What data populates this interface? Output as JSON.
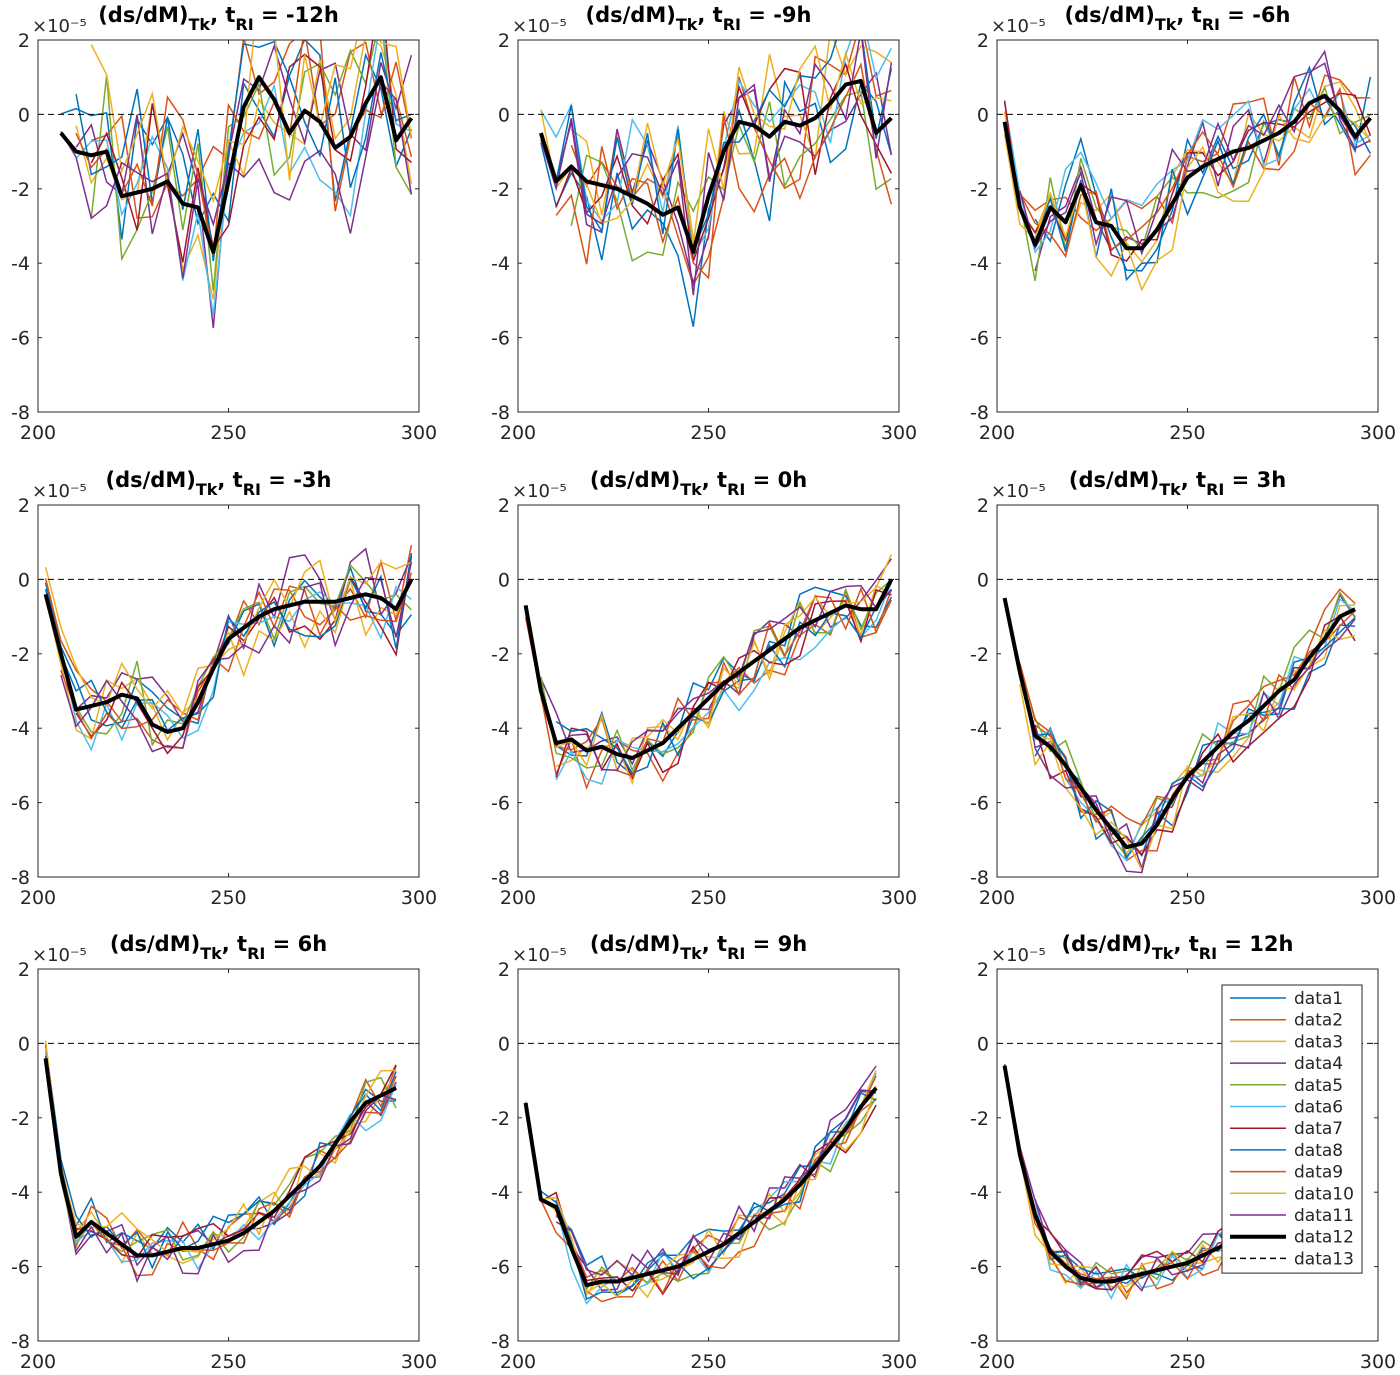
{
  "colors": {
    "series": [
      "#0072BD",
      "#D95319",
      "#EDB120",
      "#7E2F8E",
      "#77AC30",
      "#4DBEEE",
      "#A2142F",
      "#0072BD",
      "#D95319",
      "#EDB120",
      "#7E2F8E",
      "#000000",
      "#000000"
    ]
  },
  "chart_data": [
    {
      "type": "line",
      "title": "(ds/dM)Tk, tRI = -12h",
      "title_parts": {
        "main": "(ds/dM)",
        "sub1": "Tk",
        "mid": ", t",
        "sub2": "RI",
        "tail": " = -12h"
      },
      "exponent_label": "×10⁻⁵",
      "xlim": [
        200,
        300
      ],
      "ylim": [
        -8,
        2
      ],
      "xticks": [
        "200",
        "250",
        "300"
      ],
      "yticks": [
        "-8",
        "-6",
        "-4",
        "-2",
        "0",
        "2"
      ],
      "mean_series": {
        "name": "data12",
        "x": [
          206,
          210,
          214,
          218,
          222,
          226,
          230,
          234,
          238,
          242,
          246,
          250,
          254,
          258,
          262,
          266,
          270,
          274,
          278,
          282,
          286,
          290,
          294,
          298
        ],
        "y": [
          -0.5,
          -1.0,
          -1.1,
          -1.0,
          -2.2,
          -2.1,
          -2.0,
          -1.8,
          -2.4,
          -2.5,
          -3.7,
          -1.8,
          0.2,
          1.0,
          0.4,
          -0.5,
          0.1,
          -0.2,
          -0.9,
          -0.6,
          0.3,
          1.0,
          -0.7,
          -0.1
        ]
      },
      "zero_line": {
        "name": "data13",
        "y": 0
      }
    },
    {
      "type": "line",
      "title": "(ds/dM)Tk, tRI = -9h",
      "title_parts": {
        "main": "(ds/dM)",
        "sub1": "Tk",
        "mid": ", t",
        "sub2": "RI",
        "tail": " = -9h"
      },
      "exponent_label": "×10⁻⁵",
      "xlim": [
        200,
        300
      ],
      "ylim": [
        -8,
        2
      ],
      "xticks": [
        "200",
        "250",
        "300"
      ],
      "yticks": [
        "-8",
        "-6",
        "-4",
        "-2",
        "0",
        "2"
      ],
      "mean_series": {
        "name": "data12",
        "x": [
          206,
          210,
          214,
          218,
          222,
          226,
          230,
          234,
          238,
          242,
          246,
          250,
          254,
          258,
          262,
          266,
          270,
          274,
          278,
          282,
          286,
          290,
          294,
          298
        ],
        "y": [
          -0.5,
          -1.8,
          -1.4,
          -1.8,
          -1.9,
          -2.0,
          -2.2,
          -2.4,
          -2.7,
          -2.5,
          -3.7,
          -2.2,
          -1.0,
          -0.2,
          -0.3,
          -0.6,
          -0.2,
          -0.3,
          -0.1,
          0.3,
          0.8,
          0.9,
          -0.5,
          -0.1
        ]
      },
      "zero_line": {
        "name": "data13",
        "y": 0
      }
    },
    {
      "type": "line",
      "title": "(ds/dM)Tk, tRI = -6h",
      "title_parts": {
        "main": "(ds/dM)",
        "sub1": "Tk",
        "mid": ", t",
        "sub2": "RI",
        "tail": " = -6h"
      },
      "exponent_label": "×10⁻⁵",
      "xlim": [
        200,
        300
      ],
      "ylim": [
        -8,
        2
      ],
      "xticks": [
        "200",
        "250",
        "300"
      ],
      "yticks": [
        "-8",
        "-6",
        "-4",
        "-2",
        "0",
        "2"
      ],
      "mean_series": {
        "name": "data12",
        "x": [
          202,
          206,
          210,
          214,
          218,
          222,
          226,
          230,
          234,
          238,
          242,
          246,
          250,
          254,
          258,
          262,
          266,
          270,
          274,
          278,
          282,
          286,
          290,
          294,
          298
        ],
        "y": [
          -0.2,
          -2.5,
          -3.5,
          -2.5,
          -2.9,
          -1.9,
          -2.9,
          -3.0,
          -3.6,
          -3.6,
          -3.1,
          -2.4,
          -1.7,
          -1.4,
          -1.2,
          -1.0,
          -0.9,
          -0.7,
          -0.5,
          -0.2,
          0.3,
          0.5,
          0.1,
          -0.6,
          -0.1
        ]
      },
      "zero_line": {
        "name": "data13",
        "y": 0
      }
    },
    {
      "type": "line",
      "title": "(ds/dM)Tk, tRI = -3h",
      "title_parts": {
        "main": "(ds/dM)",
        "sub1": "Tk",
        "mid": ", t",
        "sub2": "RI",
        "tail": " = -3h"
      },
      "exponent_label": "×10⁻⁵",
      "xlim": [
        200,
        300
      ],
      "ylim": [
        -8,
        2
      ],
      "xticks": [
        "200",
        "250",
        "300"
      ],
      "yticks": [
        "-8",
        "-6",
        "-4",
        "-2",
        "0",
        "2"
      ],
      "mean_series": {
        "name": "data12",
        "x": [
          202,
          206,
          210,
          214,
          218,
          222,
          226,
          230,
          234,
          238,
          242,
          246,
          250,
          254,
          258,
          262,
          266,
          270,
          274,
          278,
          282,
          286,
          290,
          294,
          298
        ],
        "y": [
          -0.4,
          -2.0,
          -3.5,
          -3.4,
          -3.3,
          -3.1,
          -3.2,
          -3.9,
          -4.1,
          -4.0,
          -3.3,
          -2.4,
          -1.6,
          -1.3,
          -1.0,
          -0.8,
          -0.7,
          -0.6,
          -0.6,
          -0.6,
          -0.5,
          -0.4,
          -0.5,
          -0.8,
          0.0
        ]
      },
      "zero_line": {
        "name": "data13",
        "y": 0
      }
    },
    {
      "type": "line",
      "title": "(ds/dM)Tk, tRI =  0h",
      "title_parts": {
        "main": "(ds/dM)",
        "sub1": "Tk",
        "mid": ", t",
        "sub2": "RI",
        "tail": " =  0h"
      },
      "exponent_label": "×10⁻⁵",
      "xlim": [
        200,
        300
      ],
      "ylim": [
        -8,
        2
      ],
      "xticks": [
        "200",
        "250",
        "300"
      ],
      "yticks": [
        "-8",
        "-6",
        "-4",
        "-2",
        "0",
        "2"
      ],
      "mean_series": {
        "name": "data12",
        "x": [
          202,
          206,
          210,
          214,
          218,
          222,
          226,
          230,
          234,
          238,
          242,
          246,
          250,
          254,
          258,
          262,
          266,
          270,
          274,
          278,
          282,
          286,
          290,
          294,
          298
        ],
        "y": [
          -0.7,
          -3.0,
          -4.4,
          -4.3,
          -4.6,
          -4.5,
          -4.7,
          -4.8,
          -4.6,
          -4.4,
          -4.0,
          -3.6,
          -3.2,
          -2.8,
          -2.5,
          -2.2,
          -1.9,
          -1.6,
          -1.3,
          -1.1,
          -0.9,
          -0.7,
          -0.8,
          -0.8,
          0.0
        ]
      },
      "zero_line": {
        "name": "data13",
        "y": 0
      }
    },
    {
      "type": "line",
      "title": "(ds/dM)Tk, tRI =  3h",
      "title_parts": {
        "main": "(ds/dM)",
        "sub1": "Tk",
        "mid": ", t",
        "sub2": "RI",
        "tail": " =  3h"
      },
      "exponent_label": "×10⁻⁵",
      "xlim": [
        200,
        300
      ],
      "ylim": [
        -8,
        2
      ],
      "xticks": [
        "200",
        "250",
        "300"
      ],
      "yticks": [
        "-8",
        "-6",
        "-4",
        "-2",
        "0",
        "2"
      ],
      "mean_series": {
        "name": "data12",
        "x": [
          202,
          206,
          210,
          214,
          218,
          222,
          226,
          230,
          234,
          238,
          242,
          246,
          250,
          254,
          258,
          262,
          266,
          270,
          274,
          278,
          282,
          286,
          290,
          294
        ],
        "y": [
          -0.5,
          -2.5,
          -4.2,
          -4.5,
          -5.0,
          -5.6,
          -6.2,
          -6.7,
          -7.2,
          -7.1,
          -6.6,
          -5.9,
          -5.3,
          -4.9,
          -4.5,
          -4.1,
          -3.8,
          -3.4,
          -3.0,
          -2.7,
          -2.1,
          -1.6,
          -1.0,
          -0.8
        ]
      },
      "zero_line": {
        "name": "data13",
        "y": 0
      }
    },
    {
      "type": "line",
      "title": "(ds/dM)Tk, tRI =  6h",
      "title_parts": {
        "main": "(ds/dM)",
        "sub1": "Tk",
        "mid": ", t",
        "sub2": "RI",
        "tail": " =  6h"
      },
      "exponent_label": "×10⁻⁵",
      "xlim": [
        200,
        300
      ],
      "ylim": [
        -8,
        2
      ],
      "xticks": [
        "200",
        "250",
        "300"
      ],
      "yticks": [
        "-8",
        "-6",
        "-4",
        "-2",
        "0",
        "2"
      ],
      "mean_series": {
        "name": "data12",
        "x": [
          202,
          206,
          210,
          214,
          218,
          222,
          226,
          230,
          234,
          238,
          242,
          246,
          250,
          254,
          258,
          262,
          266,
          270,
          274,
          278,
          282,
          286,
          290,
          294
        ],
        "y": [
          -0.4,
          -3.5,
          -5.2,
          -4.8,
          -5.1,
          -5.4,
          -5.7,
          -5.7,
          -5.6,
          -5.5,
          -5.5,
          -5.4,
          -5.3,
          -5.1,
          -4.8,
          -4.5,
          -4.1,
          -3.7,
          -3.3,
          -2.7,
          -2.1,
          -1.6,
          -1.4,
          -1.2
        ]
      },
      "zero_line": {
        "name": "data13",
        "y": 0
      }
    },
    {
      "type": "line",
      "title": "(ds/dM)Tk, tRI =  9h",
      "title_parts": {
        "main": "(ds/dM)",
        "sub1": "Tk",
        "mid": ", t",
        "sub2": "RI",
        "tail": " =  9h"
      },
      "exponent_label": "×10⁻⁵",
      "xlim": [
        200,
        300
      ],
      "ylim": [
        -8,
        2
      ],
      "xticks": [
        "200",
        "250",
        "300"
      ],
      "yticks": [
        "-8",
        "-6",
        "-4",
        "-2",
        "0",
        "2"
      ],
      "mean_series": {
        "name": "data12",
        "x": [
          202,
          206,
          210,
          214,
          218,
          222,
          226,
          230,
          234,
          238,
          242,
          246,
          250,
          254,
          258,
          262,
          266,
          270,
          274,
          278,
          282,
          286,
          290,
          294
        ],
        "y": [
          -1.6,
          -4.2,
          -4.4,
          -5.5,
          -6.5,
          -6.4,
          -6.4,
          -6.3,
          -6.2,
          -6.1,
          -6.0,
          -5.8,
          -5.6,
          -5.4,
          -5.1,
          -4.8,
          -4.5,
          -4.2,
          -3.8,
          -3.3,
          -2.8,
          -2.3,
          -1.7,
          -1.2
        ]
      },
      "zero_line": {
        "name": "data13",
        "y": 0
      }
    },
    {
      "type": "line",
      "title": "(ds/dM)Tk, tRI = 12h",
      "title_parts": {
        "main": "(ds/dM)",
        "sub1": "Tk",
        "mid": ", t",
        "sub2": "RI",
        "tail": " = 12h"
      },
      "exponent_label": "×10⁻⁵",
      "xlim": [
        200,
        300
      ],
      "ylim": [
        -8,
        2
      ],
      "xticks": [
        "200",
        "250",
        "300"
      ],
      "yticks": [
        "-8",
        "-6",
        "-4",
        "-2",
        "0",
        "2"
      ],
      "mean_series": {
        "name": "data12",
        "x": [
          202,
          206,
          210,
          214,
          218,
          222,
          226,
          230,
          234,
          238,
          242,
          246,
          250,
          254,
          258,
          262,
          266,
          270
        ],
        "y": [
          -0.6,
          -3.0,
          -4.6,
          -5.6,
          -6.0,
          -6.3,
          -6.4,
          -6.4,
          -6.3,
          -6.2,
          -6.1,
          -6.0,
          -5.9,
          -5.7,
          -5.5,
          -5.3,
          -5.1,
          -4.9
        ]
      },
      "zero_line": {
        "name": "data13",
        "y": 0
      },
      "legend": {
        "placement": "top-right",
        "entries": [
          "data1",
          "data2",
          "data3",
          "data4",
          "data5",
          "data6",
          "data7",
          "data8",
          "data9",
          "data10",
          "data11",
          "data12",
          "data13"
        ]
      }
    }
  ]
}
